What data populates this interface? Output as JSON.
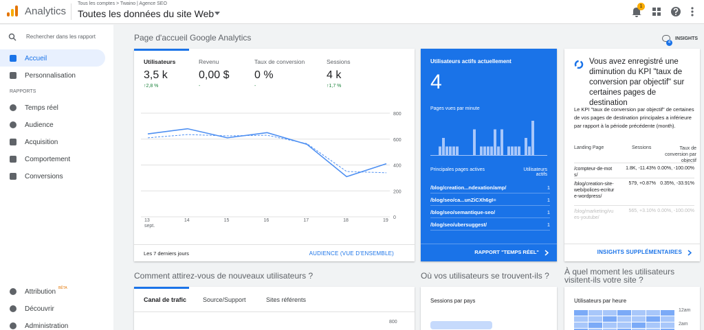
{
  "header": {
    "app": "Analytics",
    "breadcrumb": "Tous les comptes > Twaino | Agence SEO",
    "property": "Toutes les données du site Web",
    "notifications": "1"
  },
  "sidebar": {
    "search": "Rechercher dans les rapport",
    "items": [
      "Accueil",
      "Personnalisation"
    ],
    "section": "RAPPORTS",
    "reports": [
      "Temps réel",
      "Audience",
      "Acquisition",
      "Comportement",
      "Conversions"
    ],
    "bottom": [
      "Attribution",
      "Découvrir",
      "Administration"
    ],
    "beta": "BÊTA"
  },
  "page": {
    "title": "Page d'accueil Google Analytics",
    "insights": "INSIGHTS",
    "insights_count": "4"
  },
  "overview": {
    "metrics": [
      {
        "label": "Utilisateurs",
        "value": "3,5 k",
        "change": "↑2,8 %"
      },
      {
        "label": "Revenu",
        "value": "0,00 $",
        "change": "-"
      },
      {
        "label": "Taux de conversion",
        "value": "0 %",
        "change": "-"
      },
      {
        "label": "Sessions",
        "value": "4 k",
        "change": "↑1,7 %"
      }
    ],
    "period": "Les 7 derniers jours",
    "link": "AUDIENCE (VUE D'ENSEMBLE)"
  },
  "chart_data": {
    "type": "line",
    "categories": [
      "13 sept.",
      "14",
      "15",
      "16",
      "17",
      "18",
      "19"
    ],
    "series": [
      {
        "color": "#4d8ff2",
        "values": [
          640,
          680,
          610,
          650,
          560,
          310,
          410
        ]
      },
      {
        "color": "#4d8ff2",
        "dashed": true,
        "values": [
          610,
          635,
          625,
          630,
          565,
          350,
          340
        ]
      }
    ],
    "ylim": [
      0,
      800
    ],
    "yticks": [
      0,
      200,
      400,
      600,
      800
    ],
    "grid": true
  },
  "realtime": {
    "title": "Utilisateurs actifs actuellement",
    "value": "4",
    "pageviews_label": "Pages vues par minute",
    "pageviews": [
      0,
      0,
      1,
      2,
      1,
      1,
      1,
      1,
      0,
      0,
      0,
      0,
      3,
      0,
      1,
      1,
      1,
      1,
      3,
      1,
      3,
      0,
      1,
      1,
      1,
      1,
      0,
      2,
      1,
      4
    ],
    "table_header": [
      "Principales pages actives",
      "Utilisateurs actifs"
    ],
    "rows": [
      [
        "/blog/creation...ndexation/amp/",
        "1"
      ],
      [
        "/blog/seo/ca...unZiCXh6gI=",
        "1"
      ],
      [
        "/blog/seo/semantique-seo/",
        "1"
      ],
      [
        "/blog/seo/ubersuggest/",
        "1"
      ]
    ],
    "link": "RAPPORT \"TEMPS RÉEL\""
  },
  "insight": {
    "title": "Vous avez enregistré une diminution du KPI \"taux de conversion par objectif\" sur certaines pages de destination",
    "body": "Le KPI \"taux de conversion par objectif\" de certaines de vos pages de destination principales a inférieure par rapport à la période précédente (month).",
    "table_header": [
      "Landing Page",
      "Sessions",
      "Taux de conversion par objectif"
    ],
    "rows": [
      [
        "/compteur-de-mots/",
        "1.8K, -11.43%",
        "0.00%, -100.00%"
      ],
      [
        "/blog/creation-site-web/polices-ecriture-wordpress/",
        "579, +0.87%",
        "0.35%, -33.91%"
      ],
      [
        "/blog/marketing/vues-youtube/",
        "565, +3.10%",
        "0.00%, -100.00%"
      ]
    ],
    "link": "INSIGHTS SUPPLÉMENTAIRES"
  },
  "acquisition": {
    "title": "Comment attirez-vous de nouveaux utilisateurs ?",
    "tabs": [
      "Canal de trafic",
      "Source/Support",
      "Sites référents"
    ],
    "ytick": "800"
  },
  "geo": {
    "title": "Où vos utilisateurs se trouvent-ils ?",
    "card": "Sessions par pays"
  },
  "hours": {
    "title": "À quel moment les utilisateurs visitent-ils votre site ?",
    "card": "Utilisateurs par heure",
    "labels": [
      "12am",
      "2am"
    ]
  }
}
